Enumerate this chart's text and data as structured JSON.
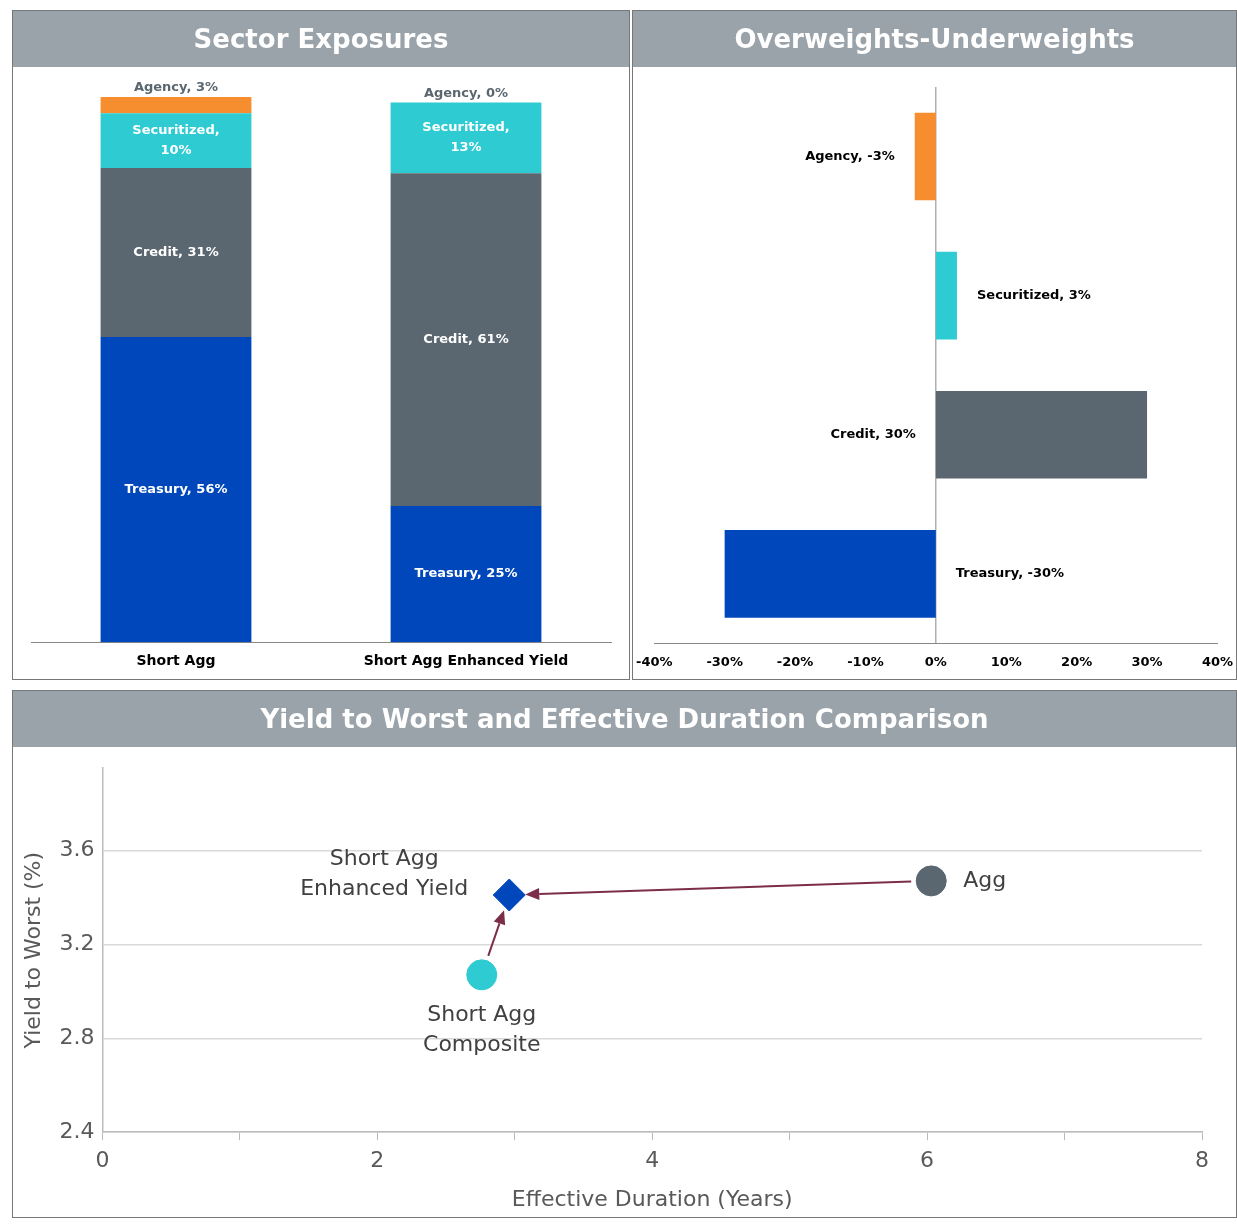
{
  "chart_data": [
    {
      "type": "bar",
      "title": "Sector Exposures",
      "stacked": true,
      "categories": [
        "Short Agg",
        "Short Agg Enhanced Yield"
      ],
      "tick_labels": "x",
      "legend": false,
      "series": [
        {
          "color": "#0047bb",
          "values": [
            56,
            25
          ],
          "value_labels": [
            "Treasury, 56%",
            "Treasury, 25%"
          ]
        },
        {
          "color": "#5b6770",
          "values": [
            31,
            61
          ],
          "value_labels": [
            "Credit, 31%",
            "Credit, 61%"
          ]
        },
        {
          "color": "#2ecbd3",
          "values": [
            10,
            13
          ],
          "value_labels": [
            "Securitized, 10%",
            "Securitized, 13%"
          ]
        },
        {
          "color": "#f68d2e",
          "values": [
            3,
            0
          ],
          "value_labels": [
            "Agency, 3%",
            "Agency, 0%"
          ]
        }
      ]
    },
    {
      "type": "bar",
      "title": "Overweights-Underweights",
      "orientation": "horizontal",
      "categories": [
        null,
        null,
        null,
        null
      ],
      "values": [
        -3,
        3,
        30,
        -30
      ],
      "colors": [
        "#f68d2e",
        "#2ecbd3",
        "#5b6770",
        "#0047bb"
      ],
      "value_labels": [
        "Agency, -3%",
        "Securitized, 3%",
        "Credit, 30%",
        "Treasury, -30%"
      ],
      "xlim": [
        -40,
        40
      ],
      "xticks": [
        {
          "value": -40,
          "label": "-40%"
        },
        {
          "value": -30,
          "label": "-30%"
        },
        {
          "value": -20,
          "label": "-20%"
        },
        {
          "value": -10,
          "label": "-10%"
        },
        {
          "value": 0,
          "label": "0%"
        },
        {
          "value": 10,
          "label": "10%"
        },
        {
          "value": 20,
          "label": "20%"
        },
        {
          "value": 30,
          "label": "30%"
        },
        {
          "value": 40,
          "label": "40%"
        }
      ],
      "tick_labels": "x",
      "grid": false,
      "legend": false,
      "ref_lines": [
        {
          "axis": "x",
          "value": 0,
          "color": "#888888"
        }
      ]
    },
    {
      "type": "scatter",
      "title": "Yield to Worst and Effective Duration Comparison",
      "xlabel": "Effective Duration (Years)",
      "ylabel": "Yield to Worst (%)",
      "xlim": [
        0,
        8
      ],
      "xticks": [
        0,
        {
          "value": 1,
          "label": null
        },
        2,
        {
          "value": 3,
          "label": null
        },
        4,
        {
          "value": 5,
          "label": null
        },
        6,
        {
          "value": 7,
          "label": null
        },
        8
      ],
      "ylim": [
        2.4,
        3.95
      ],
      "yticks": [
        2.4,
        2.8,
        3.2,
        3.6
      ],
      "grid": "y",
      "legend": false,
      "series": [
        {
          "name": "Short Agg Composite",
          "color": "#2ecbd3",
          "x": [
            2.76
          ],
          "values": [
            3.07
          ],
          "marker": "circle"
        },
        {
          "name": "Short Agg Enhanced Yield",
          "color": "#0047bb",
          "x": [
            2.96
          ],
          "values": [
            3.41
          ],
          "marker": "diamond"
        },
        {
          "name": "Agg",
          "color": "#5b6770",
          "x": [
            6.03
          ],
          "values": [
            3.47
          ],
          "marker": "circle"
        }
      ]
    }
  ]
}
